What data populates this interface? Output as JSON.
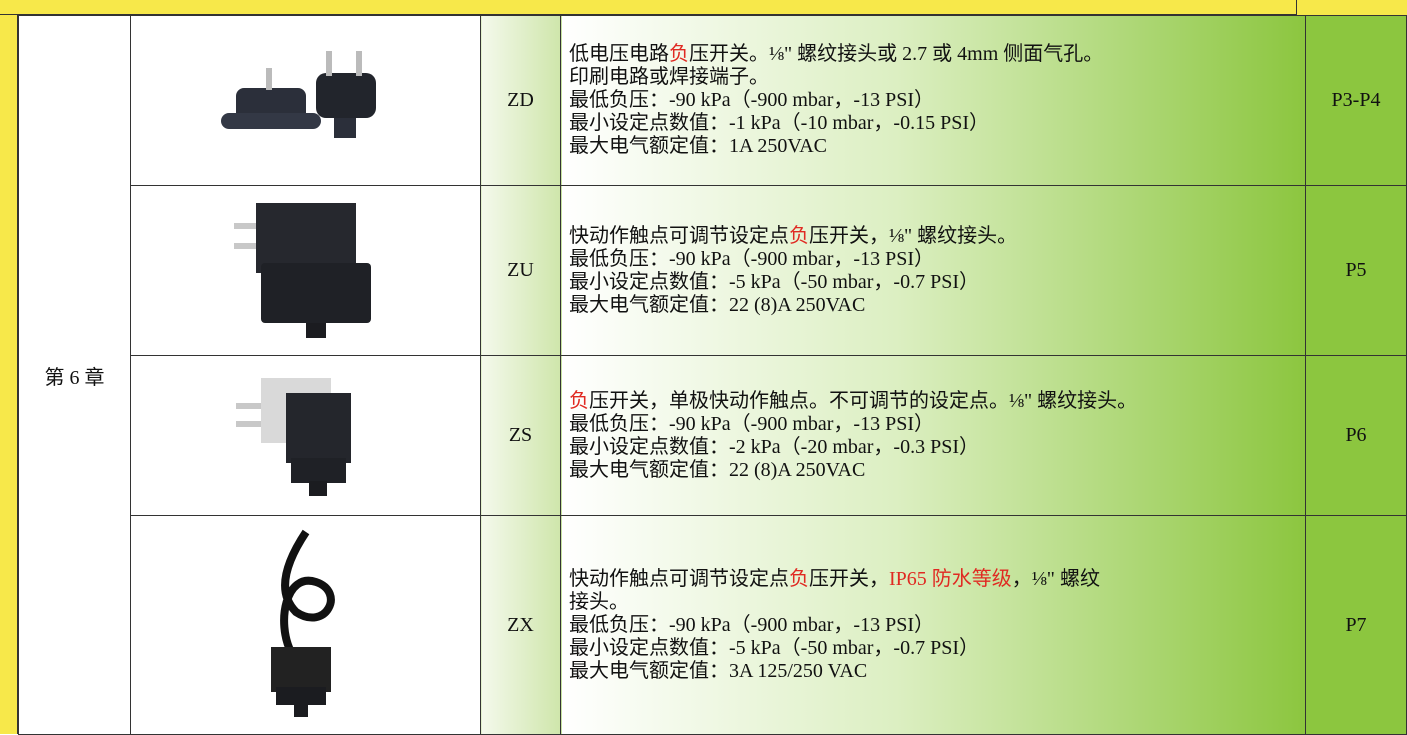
{
  "chapter": "第 6 章",
  "rows": [
    {
      "model": "ZD",
      "page": "P3-P4",
      "height": 170,
      "lines": [
        [
          {
            "text": "低电压电路"
          },
          {
            "text": "负",
            "color": "red"
          },
          {
            "text": "压开关。⅛\" 螺纹接头或 2.7 或 4mm 侧面气孔。"
          }
        ],
        [
          {
            "text": "印刷电路或焊接端子。"
          }
        ],
        [
          {
            "text": "最低负压：-90 kPa（-900 mbar，-13 PSI）"
          }
        ],
        [
          {
            "text": "最小设定点数值：-1 kPa（-10 mbar，-0.15 PSI）"
          }
        ],
        [
          {
            "text": "最大电气额定值：1A 250VAC"
          }
        ]
      ]
    },
    {
      "model": "ZU",
      "page": "P5",
      "height": 170,
      "lines": [
        [
          {
            "text": "快动作触点可调节设定点"
          },
          {
            "text": "负",
            "color": "red"
          },
          {
            "text": "压开关，⅛\" 螺纹接头。"
          }
        ],
        [
          {
            "text": "最低负压：-90 kPa（-900 mbar，-13 PSI）"
          }
        ],
        [
          {
            "text": "最小设定点数值：-5 kPa（-50 mbar，-0.7 PSI）"
          }
        ],
        [
          {
            "text": "最大电气额定值：22 (8)A 250VAC"
          }
        ]
      ]
    },
    {
      "model": "ZS",
      "page": "P6",
      "height": 160,
      "lines": [
        [
          {
            "text": "负",
            "color": "red"
          },
          {
            "text": "压开关，单极快动作触点。不可调节的设定点。⅛\" 螺纹接头。"
          }
        ],
        [
          {
            "text": "最低负压：-90 kPa（-900 mbar，-13 PSI）"
          }
        ],
        [
          {
            "text": "最小设定点数值：-2 kPa（-20 mbar，-0.3 PSI）"
          }
        ],
        [
          {
            "text": "最大电气额定值：22 (8)A 250VAC"
          }
        ]
      ]
    },
    {
      "model": "ZX",
      "page": "P7",
      "height": 219,
      "lines": [
        [
          {
            "text": "快动作触点可调节设定点"
          },
          {
            "text": "负",
            "color": "red"
          },
          {
            "text": "压开关，"
          },
          {
            "text": "IP65 防水等级",
            "color": "red"
          },
          {
            "text": "，⅛\" 螺纹"
          }
        ],
        [
          {
            "text": "接头。"
          }
        ],
        [
          {
            "text": "最低负压：-90 kPa（-900 mbar，-13 PSI）"
          }
        ],
        [
          {
            "text": "最小设定点数值：-5 kPa（-50 mbar，-0.7 PSI）"
          }
        ],
        [
          {
            "text": "最大电气额定值：3A 125/250 VAC"
          }
        ]
      ]
    }
  ]
}
